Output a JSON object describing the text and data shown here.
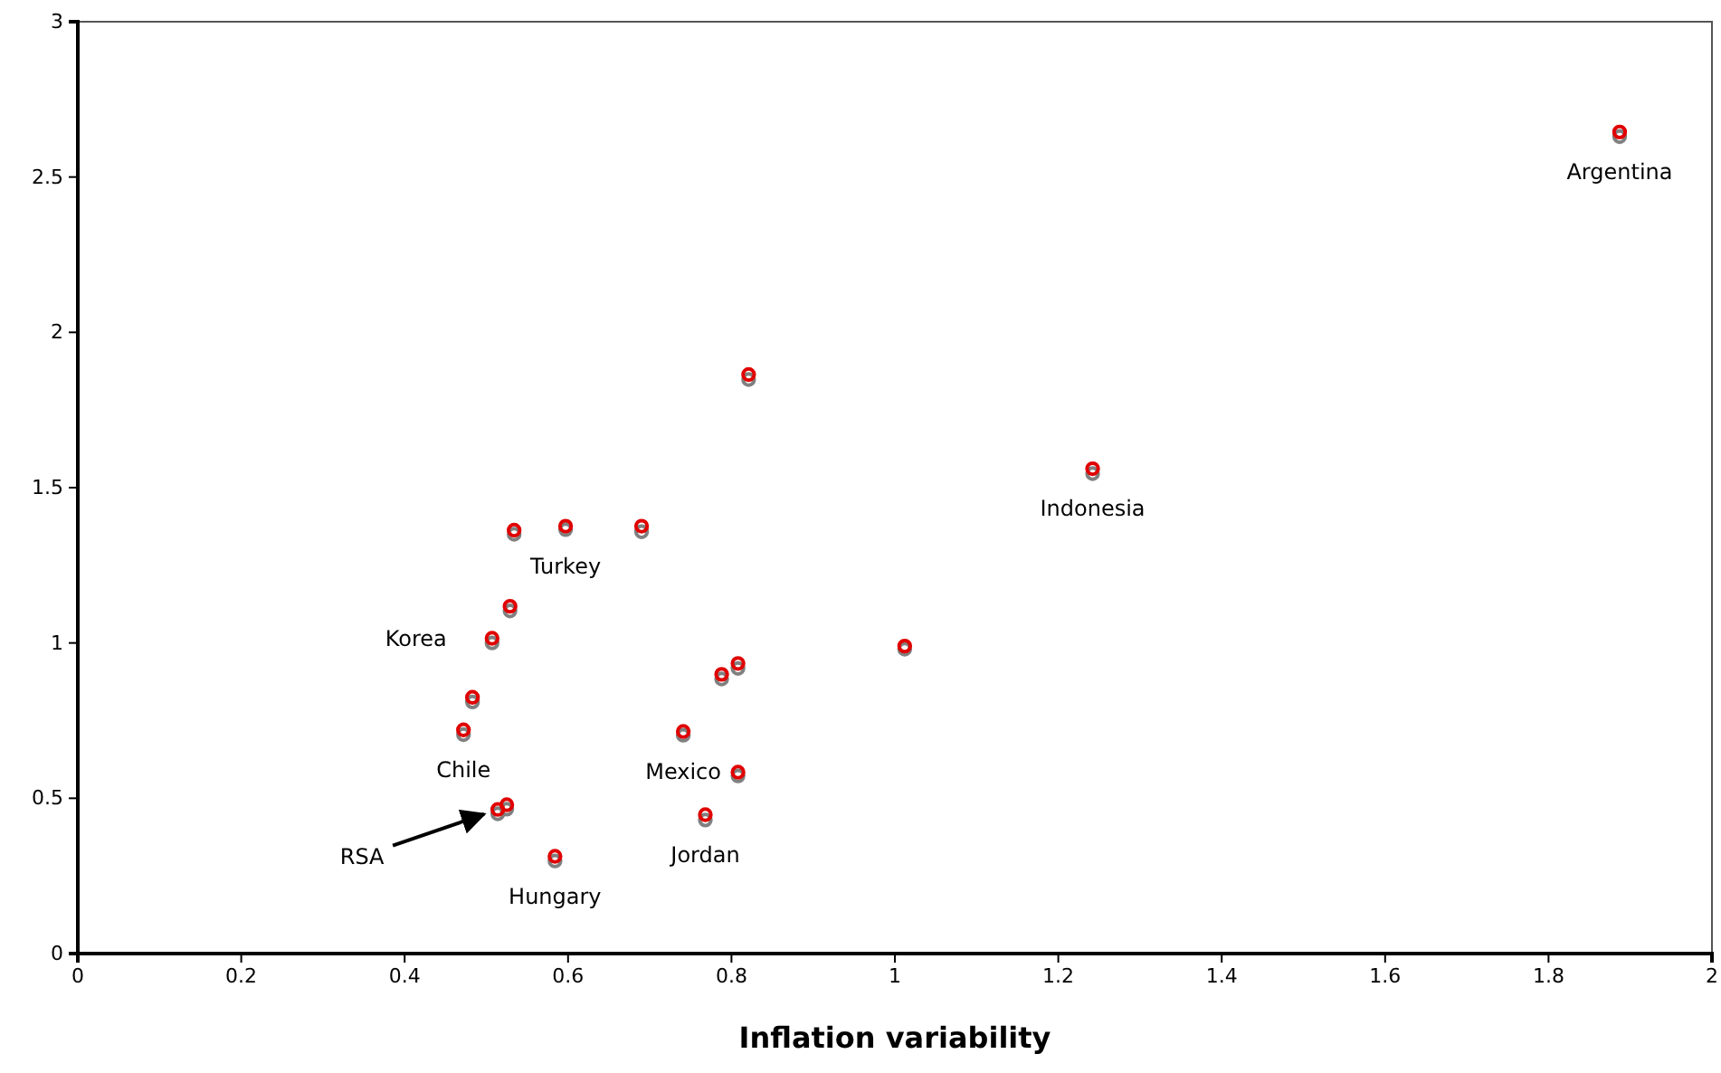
{
  "chart_data": {
    "type": "scatter",
    "xlabel": "Inflation variability",
    "xlim": [
      0,
      2
    ],
    "xticks": [
      0,
      0.2,
      0.4,
      0.6,
      0.8,
      1,
      1.2,
      1.4,
      1.6,
      1.8,
      2
    ],
    "ylim": [
      0,
      3
    ],
    "yticks": [
      0,
      0.5,
      1,
      1.5,
      2,
      2.5,
      3
    ],
    "grid": false,
    "marker": "circle",
    "x": [
      1.887,
      1.242,
      0.821,
      1.012,
      0.534,
      0.597,
      0.69,
      0.529,
      0.507,
      0.483,
      0.472,
      0.514,
      0.525,
      0.584,
      0.741,
      0.788,
      0.808,
      0.808,
      0.768
    ],
    "series": [
      {
        "color": "#808080",
        "values": [
          2.63,
          1.545,
          1.848,
          0.98,
          1.35,
          1.365,
          1.358,
          1.103,
          1.0,
          0.81,
          0.705,
          0.45,
          0.465,
          0.298,
          0.703,
          0.884,
          0.918,
          0.572,
          0.43
        ]
      },
      {
        "color": "#e00000",
        "values": [
          2.645,
          1.561,
          1.864,
          0.99,
          1.363,
          1.376,
          1.376,
          1.118,
          1.015,
          0.825,
          0.72,
          0.464,
          0.479,
          0.313,
          0.715,
          0.899,
          0.934,
          0.584,
          0.447
        ]
      }
    ],
    "annotations": [
      {
        "text": "Argentina",
        "x": 1.887,
        "y": 2.645
      },
      {
        "text": "Indonesia",
        "x": 1.242,
        "y": 1.561
      },
      {
        "text": "Turkey",
        "x": 0.597,
        "y": 1.376
      },
      {
        "text": "Korea",
        "x": 0.507,
        "y": 1.015
      },
      {
        "text": "Chile",
        "x": 0.472,
        "y": 0.72
      },
      {
        "text": "Mexico",
        "x": 0.741,
        "y": 0.715
      },
      {
        "text": "RSA",
        "x": 0.514,
        "y": 0.464
      },
      {
        "text": "Hungary",
        "x": 0.584,
        "y": 0.313
      },
      {
        "text": "Jordan",
        "x": 0.768,
        "y": 0.447
      }
    ]
  }
}
